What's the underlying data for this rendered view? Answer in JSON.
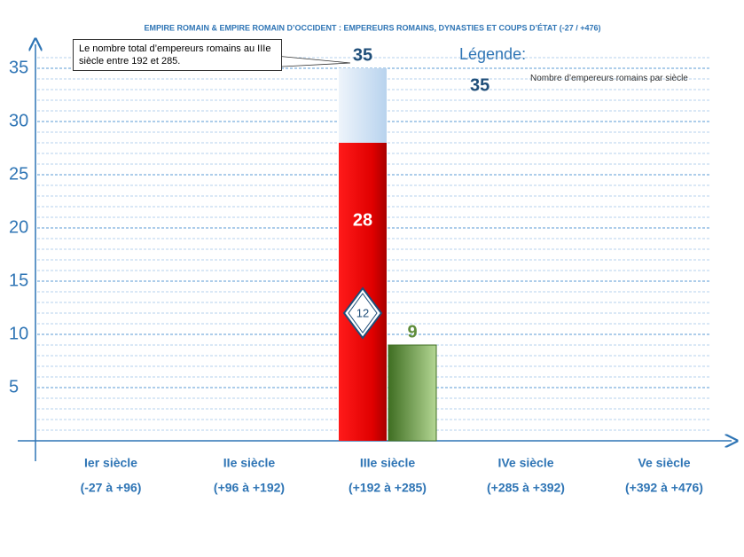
{
  "chart_data": {
    "type": "bar",
    "title": "EMPIRE ROMAIN & EMPIRE ROMAIN D’OCCIDENT : EMPEREURS ROMAINS, DYNASTIES ET COUPS D’ÉTAT (-27 / +476)",
    "categories": [
      "Ier siècle",
      "IIe siècle",
      "IIIe siècle",
      "IVe siècle",
      "Ve siècle"
    ],
    "category_ranges": [
      "(-27 à +96)",
      "(+96 à +192)",
      "(+192 à +285)",
      "(+285 à +392)",
      "(+392 à +476)"
    ],
    "series": [
      {
        "name": "Nombre d’empereurs romains par siècle",
        "color": "#c6dcf0",
        "values": [
          null,
          null,
          35,
          null,
          null
        ]
      },
      {
        "color": "#e00000",
        "values": [
          null,
          null,
          28,
          null,
          null
        ]
      },
      {
        "color": "#5e8c3a",
        "values": [
          null,
          null,
          9,
          null,
          null
        ]
      }
    ],
    "marker": {
      "value": 12,
      "color": "#1f4e79"
    },
    "annotation": "Le nombre total d’empereurs romains au IIIe siècle entre 192 et 285.",
    "legend_title": "Légende:",
    "ylim": [
      0,
      37
    ],
    "yticks": [
      5,
      10,
      15,
      20,
      25,
      30,
      35
    ],
    "minor_grid_step": 1,
    "grid": true
  }
}
